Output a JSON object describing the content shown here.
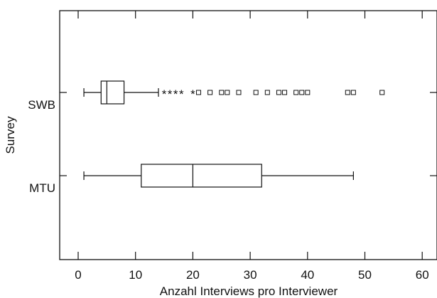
{
  "chart_data": {
    "type": "boxplot",
    "xlabel": "Anzahl Interviews pro Interviewer",
    "ylabel": "Survey",
    "xlim": [
      -3,
      62
    ],
    "xticks": [
      0,
      10,
      20,
      30,
      40,
      50,
      60
    ],
    "grid": false,
    "orientation": "horizontal",
    "groups": [
      {
        "name": "SWB",
        "whisker_low": 1,
        "q1": 4,
        "median": 5,
        "q3": 8,
        "whisker_high": 14,
        "outliers_star": [
          15,
          16,
          17,
          18,
          20
        ],
        "outliers_square": [
          21,
          23,
          25,
          26,
          28,
          31,
          33,
          35,
          36,
          38,
          39,
          40,
          47,
          48,
          53
        ]
      },
      {
        "name": "MTU",
        "whisker_low": 1,
        "q1": 11,
        "median": 20,
        "q3": 32,
        "whisker_high": 48,
        "outliers_star": [],
        "outliers_square": []
      }
    ]
  }
}
